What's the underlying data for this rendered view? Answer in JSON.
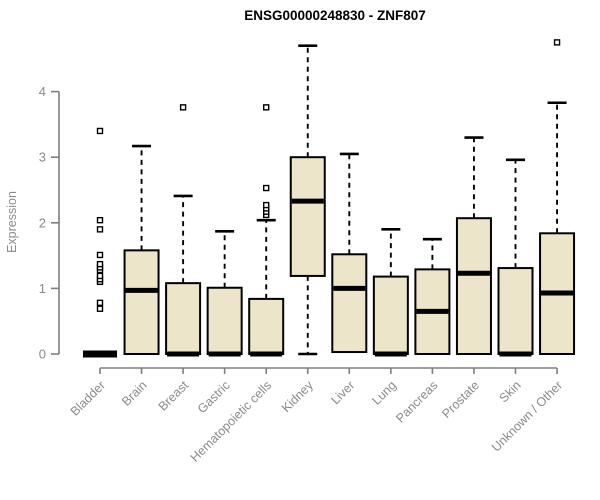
{
  "chart_data": {
    "type": "boxplot",
    "title": "ENSG00000248830 - ZNF807",
    "xlabel": "",
    "ylabel": "Expression",
    "ylim": [
      0,
      4.9
    ],
    "yticks": [
      0,
      1,
      2,
      3,
      4
    ],
    "grid": false,
    "legend": "none",
    "colors": {
      "box_fill": "#ECE5C9",
      "box_stroke": "#000000",
      "median": "#000000",
      "whisker": "#000000",
      "axis": "#7f7f7f",
      "tick_label": "#8a8a8a",
      "title": "#000000",
      "background": "#ffffff"
    },
    "categories": [
      "Bladder",
      "Brain",
      "Breast",
      "Gastric",
      "Hematopoietic cells",
      "Kidney",
      "Liver",
      "Lung",
      "Pancreas",
      "Prostate",
      "Skin",
      "Unknown / Other"
    ],
    "boxes": [
      {
        "category": "Bladder",
        "low": 0,
        "q1": 0,
        "median": 0,
        "q3": 0,
        "high": 0,
        "outliers": [
          0.69,
          0.78,
          1.1,
          1.14,
          1.19,
          1.28,
          1.32,
          1.37,
          1.51,
          1.9,
          2.04,
          3.4
        ]
      },
      {
        "category": "Brain",
        "low": 0,
        "q1": 0,
        "median": 0.97,
        "q3": 1.58,
        "high": 3.17,
        "outliers": []
      },
      {
        "category": "Breast",
        "low": 0,
        "q1": 0,
        "median": 0,
        "q3": 1.08,
        "high": 2.41,
        "outliers": [
          3.76
        ]
      },
      {
        "category": "Gastric",
        "low": 0,
        "q1": 0,
        "median": 0,
        "q3": 1.01,
        "high": 1.87,
        "outliers": []
      },
      {
        "category": "Hematopoietic cells",
        "low": 0,
        "q1": 0,
        "median": 0,
        "q3": 0.84,
        "high": 2.04,
        "outliers": [
          2.12,
          2.17,
          2.22,
          2.27,
          2.53,
          3.76
        ]
      },
      {
        "category": "Kidney",
        "low": 0,
        "q1": 1.19,
        "median": 2.33,
        "q3": 3.0,
        "high": 4.7,
        "outliers": []
      },
      {
        "category": "Liver",
        "low": 0,
        "q1": 0.03,
        "median": 1.0,
        "q3": 1.52,
        "high": 3.05,
        "outliers": []
      },
      {
        "category": "Lung",
        "low": 0,
        "q1": 0,
        "median": 0,
        "q3": 1.18,
        "high": 1.9,
        "outliers": []
      },
      {
        "category": "Pancreas",
        "low": 0,
        "q1": 0,
        "median": 0.65,
        "q3": 1.29,
        "high": 1.75,
        "outliers": []
      },
      {
        "category": "Prostate",
        "low": 0,
        "q1": 0,
        "median": 1.23,
        "q3": 2.07,
        "high": 3.3,
        "outliers": []
      },
      {
        "category": "Skin",
        "low": 0,
        "q1": 0,
        "median": 0,
        "q3": 1.31,
        "high": 2.96,
        "outliers": []
      },
      {
        "category": "Unknown / Other",
        "low": 0,
        "q1": 0,
        "median": 0.93,
        "q3": 1.84,
        "high": 3.83,
        "outliers": [
          4.75
        ]
      }
    ]
  }
}
